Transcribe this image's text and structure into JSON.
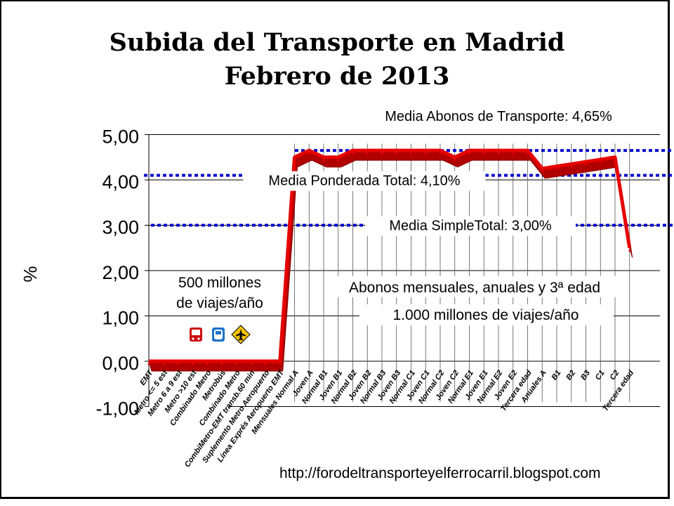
{
  "title_line1": "Subida del Transporte en Madrid",
  "title_line2": "Febrero de 2013",
  "footer_url": "http://forodeltransporteyelferrocarril.blogspot.com",
  "chart_data": {
    "type": "line",
    "title": "Subida del Transporte en Madrid Febrero de 2013",
    "xlabel": "",
    "ylabel": "%",
    "ylim": [
      -1,
      5
    ],
    "yticks": [
      "5,00",
      "4,00",
      "3,00",
      "2,00",
      "1,00",
      "0,00",
      "-1,00"
    ],
    "ytick_values": [
      5,
      4,
      3,
      2,
      1,
      0,
      -1
    ],
    "grid": true,
    "categories": [
      "EMT",
      "Metro <= 5 est",
      "Metro 6 a 9 est",
      "Metro >10 est",
      "Combinado Metro",
      "Metrobús",
      "Combinado Metro",
      "CombiMetro-EMT transb.60 min",
      "Suplemento Metro Aeropuerto",
      "Línea Exprés Aeropuerto EMT",
      "Mensuales Normal A",
      "Joven A",
      "Normal B1",
      "Joven B1",
      "Normal B2",
      "Joven B2",
      "Normal B3",
      "Joven B3",
      "Normal C1",
      "Joven C1",
      "Normal C2",
      "Joven C2",
      "Normal E1",
      "Joven E1",
      "Normal E2",
      "Joven E2",
      "Tercera edad",
      "Anuales A",
      "B1",
      "B2",
      "B3",
      "C1",
      "C2",
      "Tercera edad"
    ],
    "series": [
      {
        "color": "#cc0000",
        "values": [
          0,
          0,
          0,
          0,
          0,
          0,
          0,
          0,
          0,
          0,
          4.5,
          4.65,
          4.5,
          4.5,
          4.65,
          4.65,
          4.65,
          4.65,
          4.65,
          4.65,
          4.65,
          4.5,
          4.65,
          4.65,
          4.65,
          4.65,
          4.65,
          4.25,
          4.3,
          4.35,
          4.4,
          4.45,
          4.5,
          2.5
        ]
      }
    ],
    "reference_lines": [
      {
        "label": "Media  Abonos de Transporte: 4,65%",
        "value": 4.65,
        "color": "#0000cc"
      },
      {
        "label": "Media Ponderada Total: 4,10%",
        "value": 4.1,
        "color": "#0000cc"
      },
      {
        "label": "Media SimpleTotal: 3,00%",
        "value": 3.0,
        "color": "#0000cc"
      }
    ],
    "annotations": [
      "500 millones",
      "de viajes/año",
      "Abonos mensuales, anuales y 3ª edad",
      "1.000 millones de viajes/año"
    ],
    "icons": [
      "bus-icon",
      "metro-icon",
      "airport-icon"
    ]
  }
}
